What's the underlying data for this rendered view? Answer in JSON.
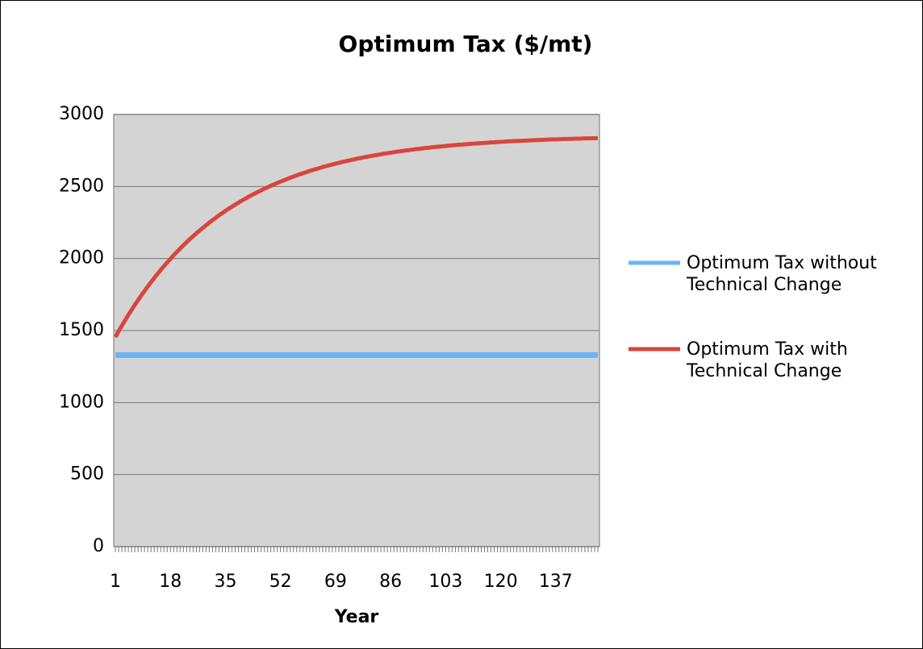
{
  "chart_data": {
    "type": "line",
    "title": "Optimum Tax ($/mt)",
    "x_label": "Year",
    "x": [
      1,
      2,
      3,
      4,
      5,
      6,
      7,
      8,
      9,
      10,
      11,
      12,
      13,
      14,
      15,
      16,
      17,
      18,
      19,
      20,
      21,
      22,
      23,
      24,
      25,
      26,
      27,
      28,
      29,
      30,
      31,
      32,
      33,
      34,
      35,
      36,
      37,
      38,
      39,
      40,
      41,
      42,
      43,
      44,
      45,
      46,
      47,
      48,
      49,
      50,
      51,
      52,
      53,
      54,
      55,
      56,
      57,
      58,
      59,
      60,
      61,
      62,
      63,
      64,
      65,
      66,
      67,
      68,
      69,
      70,
      71,
      72,
      73,
      74,
      75,
      76,
      77,
      78,
      79,
      80,
      81,
      82,
      83,
      84,
      85,
      86,
      87,
      88,
      89,
      90,
      91,
      92,
      93,
      94,
      95,
      96,
      97,
      98,
      99,
      100,
      101,
      102,
      103,
      104,
      105,
      106,
      107,
      108,
      109,
      110,
      111,
      112,
      113,
      114,
      115,
      116,
      117,
      118,
      119,
      120,
      121,
      122,
      123,
      124,
      125,
      126,
      127,
      128,
      129,
      130,
      131,
      132,
      133,
      134,
      135,
      136,
      137,
      138,
      139,
      140,
      141,
      142,
      143,
      144,
      145,
      146,
      147,
      148,
      149,
      150
    ],
    "xlim": [
      0.5,
      150.5
    ],
    "xticks": [
      1,
      18,
      35,
      52,
      69,
      86,
      103,
      120,
      137
    ],
    "ylim": [
      0,
      3000
    ],
    "yticks": [
      0,
      500,
      1000,
      1500,
      2000,
      2500,
      3000
    ],
    "grid": true,
    "legend": "right",
    "series": [
      {
        "name": "Optimum Tax without Technical Change",
        "color": "#6ab4f5",
        "values": [
          1330,
          1330,
          1330,
          1330,
          1330,
          1330,
          1330,
          1330,
          1330,
          1330,
          1330,
          1330,
          1330,
          1330,
          1330,
          1330,
          1330,
          1330,
          1330,
          1330,
          1330,
          1330,
          1330,
          1330,
          1330,
          1330,
          1330,
          1330,
          1330,
          1330,
          1330,
          1330,
          1330,
          1330,
          1330,
          1330,
          1330,
          1330,
          1330,
          1330,
          1330,
          1330,
          1330,
          1330,
          1330,
          1330,
          1330,
          1330,
          1330,
          1330,
          1330,
          1330,
          1330,
          1330,
          1330,
          1330,
          1330,
          1330,
          1330,
          1330,
          1330,
          1330,
          1330,
          1330,
          1330,
          1330,
          1330,
          1330,
          1330,
          1330,
          1330,
          1330,
          1330,
          1330,
          1330,
          1330,
          1330,
          1330,
          1330,
          1330,
          1330,
          1330,
          1330,
          1330,
          1330,
          1330,
          1330,
          1330,
          1330,
          1330,
          1330,
          1330,
          1330,
          1330,
          1330,
          1330,
          1330,
          1330,
          1330,
          1330,
          1330,
          1330,
          1330,
          1330,
          1330,
          1330,
          1330,
          1330,
          1330,
          1330,
          1330,
          1330,
          1330,
          1330,
          1330,
          1330,
          1330,
          1330,
          1330,
          1330,
          1330,
          1330,
          1330,
          1330,
          1330,
          1330,
          1330,
          1330,
          1330,
          1330,
          1330,
          1330,
          1330,
          1330,
          1330,
          1330,
          1330,
          1330,
          1330,
          1330,
          1330,
          1330,
          1330,
          1330,
          1330,
          1330,
          1330,
          1330,
          1330,
          1330
        ]
      },
      {
        "name": "Optimum Tax with Technical Change",
        "color": "#d9453d",
        "values": [
          1455,
          1495,
          1534,
          1571,
          1608,
          1643,
          1678,
          1711,
          1744,
          1775,
          1806,
          1836,
          1865,
          1893,
          1921,
          1947,
          1973,
          1998,
          2023,
          2046,
          2069,
          2092,
          2113,
          2135,
          2155,
          2175,
          2194,
          2213,
          2231,
          2249,
          2266,
          2283,
          2300,
          2315,
          2331,
          2346,
          2360,
          2374,
          2388,
          2401,
          2414,
          2427,
          2439,
          2451,
          2462,
          2473,
          2484,
          2495,
          2505,
          2515,
          2525,
          2534,
          2543,
          2552,
          2561,
          2569,
          2577,
          2585,
          2593,
          2600,
          2608,
          2615,
          2621,
          2628,
          2635,
          2641,
          2647,
          2653,
          2659,
          2664,
          2670,
          2675,
          2680,
          2685,
          2690,
          2695,
          2699,
          2704,
          2708,
          2712,
          2716,
          2720,
          2724,
          2728,
          2731,
          2735,
          2738,
          2742,
          2745,
          2748,
          2751,
          2754,
          2757,
          2760,
          2762,
          2765,
          2768,
          2770,
          2773,
          2775,
          2777,
          2779,
          2781,
          2784,
          2786,
          2788,
          2790,
          2791,
          2793,
          2795,
          2797,
          2798,
          2800,
          2801,
          2803,
          2804,
          2806,
          2807,
          2809,
          2810,
          2811,
          2813,
          2814,
          2815,
          2816,
          2817,
          2818,
          2819,
          2820,
          2821,
          2822,
          2823,
          2824,
          2825,
          2826,
          2827,
          2827,
          2828,
          2829,
          2830,
          2830,
          2831,
          2832,
          2832,
          2833,
          2834,
          2834,
          2835,
          2835,
          2836
        ]
      }
    ]
  }
}
